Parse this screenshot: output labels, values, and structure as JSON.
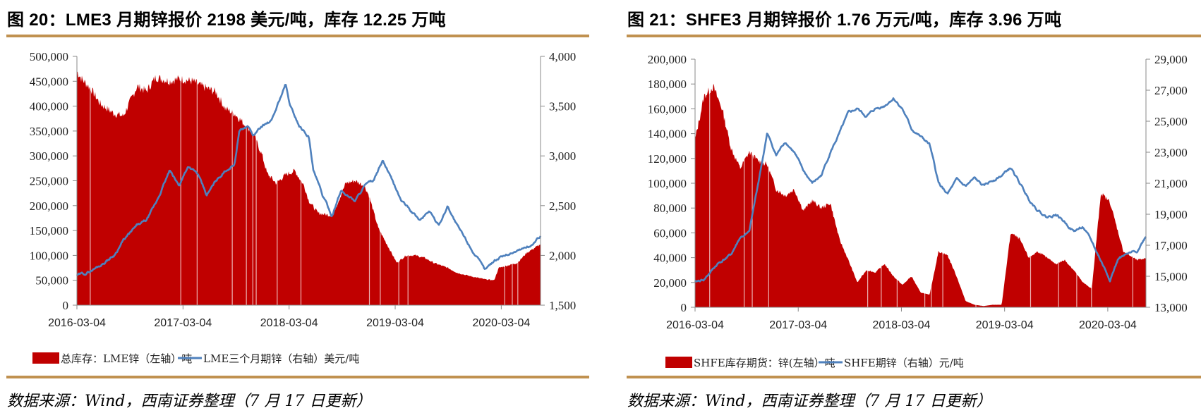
{
  "colors": {
    "inventory_fill": "#C00000",
    "price_line": "#4F81BD",
    "rule": "#C09150",
    "axis": "#888888"
  },
  "left": {
    "title": "图 20：LME3 月期锌报价 2198 美元/吨，库存 12.25 万吨",
    "source": "数据来源：Wind，西南证券整理（7 月 17 日更新）",
    "legend": {
      "inventory": "总库存：LME锌（左轴）吨",
      "price": "LME三个月期锌（右轴）美元/吨"
    }
  },
  "right": {
    "title": "图 21：SHFE3 月期锌报价 1.76 万元/吨，库存 3.96 万吨",
    "source": "数据来源：Wind，西南证券整理（7 月 17 日更新）",
    "legend": {
      "inventory": "SHFE库存期货：锌(左轴）吨",
      "price": "SHFE期锌（右轴）元/吨"
    }
  },
  "chart_data": [
    {
      "type": "area+line",
      "title": "图 20：LME3 月期锌报价 2198 美元/吨，库存 12.25 万吨",
      "x_ticks": [
        "2016-03-04",
        "2017-03-04",
        "2018-03-04",
        "2019-03-04",
        "2020-03-04"
      ],
      "x_range": [
        "2016-03-04",
        "2020-07-17"
      ],
      "left_axis": {
        "label": "吨",
        "ylim": [
          0,
          500000
        ],
        "ticks": [
          0,
          50000,
          100000,
          150000,
          200000,
          250000,
          300000,
          350000,
          400000,
          450000,
          500000
        ],
        "tick_labels": [
          "0",
          "50,000",
          "100,000",
          "150,000",
          "200,000",
          "250,000",
          "300,000",
          "350,000",
          "400,000",
          "450,000",
          "500,000"
        ]
      },
      "right_axis": {
        "label": "美元/吨",
        "ylim": [
          1500,
          4000
        ],
        "ticks": [
          1500,
          2000,
          2500,
          3000,
          3500,
          4000
        ],
        "tick_labels": [
          "1,500",
          "2,000",
          "2,500",
          "3,000",
          "3,500",
          "4,000"
        ]
      },
      "grid": false,
      "legend_position": "bottom",
      "series": [
        {
          "name": "总库存：LME锌（左轴）吨",
          "type": "area",
          "axis": "left",
          "x": [
            0.0,
            0.01,
            0.03,
            0.05,
            0.08,
            0.1,
            0.13,
            0.15,
            0.17,
            0.2,
            0.22,
            0.25,
            0.27,
            0.3,
            0.32,
            0.34,
            0.36,
            0.38,
            0.4,
            0.41,
            0.43,
            0.45,
            0.47,
            0.49,
            0.5,
            0.52,
            0.55,
            0.56,
            0.58,
            0.6,
            0.62,
            0.63,
            0.65,
            0.67,
            0.69,
            0.71,
            0.73,
            0.75,
            0.77,
            0.8,
            0.82,
            0.85,
            0.88,
            0.9,
            0.91,
            0.93,
            0.95,
            0.97,
            1.0
          ],
          "values": [
            470000,
            455000,
            435000,
            405000,
            385000,
            380000,
            440000,
            430000,
            458000,
            450000,
            455000,
            450000,
            440000,
            428000,
            395000,
            385000,
            365000,
            345000,
            300000,
            265000,
            245000,
            262000,
            270000,
            240000,
            210000,
            185000,
            180000,
            200000,
            245000,
            250000,
            240000,
            220000,
            155000,
            120000,
            85000,
            100000,
            100000,
            95000,
            85000,
            75000,
            65000,
            58000,
            52000,
            50000,
            75000,
            80000,
            85000,
            105000,
            122500
          ]
        },
        {
          "name": "LME三个月期锌（右轴）美元/吨",
          "type": "line",
          "axis": "right",
          "x": [
            0.0,
            0.02,
            0.05,
            0.08,
            0.1,
            0.13,
            0.15,
            0.17,
            0.2,
            0.22,
            0.24,
            0.26,
            0.28,
            0.3,
            0.32,
            0.34,
            0.35,
            0.37,
            0.38,
            0.4,
            0.42,
            0.44,
            0.45,
            0.46,
            0.48,
            0.5,
            0.51,
            0.53,
            0.55,
            0.57,
            0.6,
            0.62,
            0.64,
            0.66,
            0.68,
            0.7,
            0.72,
            0.74,
            0.76,
            0.78,
            0.8,
            0.82,
            0.84,
            0.86,
            0.88,
            0.9,
            0.92,
            0.95,
            0.98,
            1.0
          ],
          "values": [
            1800,
            1820,
            1900,
            2000,
            2150,
            2300,
            2350,
            2520,
            2850,
            2700,
            2900,
            2820,
            2600,
            2750,
            2850,
            2920,
            3250,
            3300,
            3200,
            3300,
            3350,
            3600,
            3720,
            3500,
            3300,
            3200,
            2850,
            2600,
            2400,
            2650,
            2550,
            2700,
            2750,
            2950,
            2750,
            2550,
            2450,
            2350,
            2450,
            2300,
            2500,
            2300,
            2150,
            2000,
            1850,
            1950,
            2000,
            2050,
            2100,
            2198
          ]
        }
      ]
    },
    {
      "type": "area+line",
      "title": "图 21：SHFE3 月期锌报价 1.76 万元/吨，库存 3.96 万吨",
      "x_ticks": [
        "2016-03-04",
        "2017-03-04",
        "2018-03-04",
        "2019-03-04",
        "2020-03-04"
      ],
      "x_range": [
        "2016-03-04",
        "2020-07-17"
      ],
      "left_axis": {
        "label": "吨",
        "ylim": [
          0,
          200000
        ],
        "ticks": [
          0,
          20000,
          40000,
          60000,
          80000,
          100000,
          120000,
          140000,
          160000,
          180000,
          200000
        ],
        "tick_labels": [
          "0",
          "20,000",
          "40,000",
          "60,000",
          "80,000",
          "100,000",
          "120,000",
          "140,000",
          "160,000",
          "180,000",
          "200,000"
        ]
      },
      "right_axis": {
        "label": "元/吨",
        "ylim": [
          13000,
          29000
        ],
        "ticks": [
          13000,
          15000,
          17000,
          19000,
          21000,
          23000,
          25000,
          27000,
          29000
        ],
        "tick_labels": [
          "13,000",
          "15,000",
          "17,000",
          "19,000",
          "21,000",
          "23,000",
          "25,000",
          "27,000",
          "29,000"
        ]
      },
      "grid": false,
      "legend_position": "bottom",
      "series": [
        {
          "name": "SHFE库存期货：锌(左轴）吨",
          "type": "area",
          "axis": "left",
          "x": [
            0.0,
            0.02,
            0.04,
            0.06,
            0.08,
            0.1,
            0.12,
            0.14,
            0.16,
            0.18,
            0.2,
            0.22,
            0.24,
            0.26,
            0.28,
            0.3,
            0.32,
            0.34,
            0.36,
            0.38,
            0.4,
            0.42,
            0.44,
            0.46,
            0.48,
            0.5,
            0.52,
            0.54,
            0.56,
            0.58,
            0.6,
            0.62,
            0.64,
            0.66,
            0.68,
            0.7,
            0.72,
            0.74,
            0.76,
            0.78,
            0.8,
            0.82,
            0.84,
            0.86,
            0.88,
            0.9,
            0.92,
            0.95,
            0.98,
            1.0
          ],
          "values": [
            135000,
            170000,
            178000,
            160000,
            128000,
            112000,
            125000,
            118000,
            115000,
            95000,
            90000,
            95000,
            78000,
            86000,
            80000,
            84000,
            55000,
            38000,
            20000,
            30000,
            28000,
            35000,
            25000,
            18000,
            25000,
            12000,
            10000,
            45000,
            42000,
            25000,
            5000,
            2000,
            1000,
            2000,
            2000,
            60000,
            55000,
            40000,
            45000,
            40000,
            35000,
            38000,
            30000,
            20000,
            15000,
            92000,
            85000,
            45000,
            38000,
            39600
          ]
        },
        {
          "name": "SHFE期锌（右轴）元/吨",
          "type": "line",
          "axis": "right",
          "x": [
            0.0,
            0.02,
            0.05,
            0.08,
            0.1,
            0.12,
            0.14,
            0.16,
            0.18,
            0.2,
            0.22,
            0.24,
            0.26,
            0.28,
            0.3,
            0.32,
            0.34,
            0.36,
            0.38,
            0.4,
            0.42,
            0.44,
            0.46,
            0.48,
            0.5,
            0.52,
            0.54,
            0.56,
            0.58,
            0.6,
            0.62,
            0.64,
            0.66,
            0.68,
            0.7,
            0.72,
            0.74,
            0.76,
            0.78,
            0.8,
            0.82,
            0.84,
            0.86,
            0.88,
            0.9,
            0.92,
            0.94,
            0.96,
            0.98,
            1.0
          ],
          "values": [
            14600,
            14800,
            15800,
            16400,
            17500,
            17800,
            21000,
            24200,
            22800,
            23700,
            23000,
            21800,
            21000,
            21500,
            23000,
            24200,
            25500,
            25800,
            25300,
            25800,
            26000,
            26500,
            25800,
            24500,
            24000,
            23500,
            21000,
            20300,
            21200,
            20800,
            21300,
            20800,
            21200,
            21500,
            22000,
            21000,
            20000,
            19300,
            18800,
            19000,
            18500,
            17900,
            18200,
            17200,
            16000,
            14800,
            16200,
            16400,
            16600,
            17600
          ]
        }
      ]
    }
  ]
}
